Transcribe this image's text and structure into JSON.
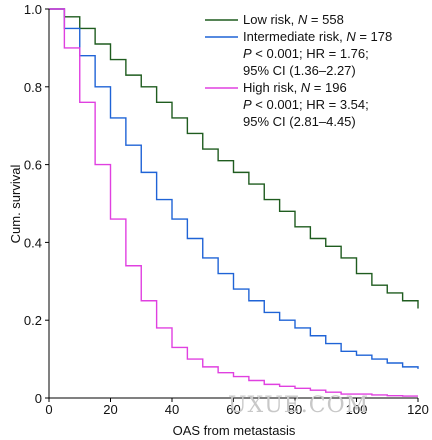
{
  "chart_data": {
    "type": "line",
    "xlabel": "OAS from metastasis",
    "ylabel": "Cum. survival",
    "xlim": [
      0,
      120
    ],
    "ylim": [
      0,
      1.0
    ],
    "x_ticks": [
      "0",
      "20",
      "40",
      "60",
      "80",
      "100",
      "120"
    ],
    "y_ticks": [
      "0",
      "0.2",
      "0.4",
      "0.6",
      "0.8",
      "1.0"
    ],
    "grid": false,
    "legend_position": "top-right",
    "series": [
      {
        "name_parts": [
          "Low risk, ",
          "N",
          " = 558"
        ],
        "stats": [],
        "color": "#1f5c1f",
        "x": [
          0,
          5,
          10,
          15,
          20,
          25,
          30,
          35,
          40,
          45,
          50,
          55,
          60,
          65,
          70,
          75,
          80,
          85,
          90,
          95,
          100,
          105,
          110,
          115,
          120
        ],
        "y": [
          1.0,
          0.98,
          0.95,
          0.91,
          0.87,
          0.83,
          0.8,
          0.76,
          0.72,
          0.68,
          0.64,
          0.61,
          0.58,
          0.55,
          0.51,
          0.48,
          0.44,
          0.41,
          0.39,
          0.36,
          0.32,
          0.29,
          0.27,
          0.25,
          0.23
        ]
      },
      {
        "name_parts": [
          "Intermediate risk, ",
          "N",
          " = 178"
        ],
        "stats": [
          [
            "P",
            " < 0.001; HR = 1.76;"
          ],
          [
            "",
            "95% CI (1.36–2.27)"
          ]
        ],
        "color": "#1f63d6",
        "x": [
          0,
          5,
          10,
          15,
          20,
          25,
          30,
          35,
          40,
          45,
          50,
          55,
          60,
          65,
          70,
          75,
          80,
          85,
          90,
          95,
          100,
          105,
          110,
          115,
          120
        ],
        "y": [
          1.0,
          0.95,
          0.88,
          0.8,
          0.72,
          0.65,
          0.58,
          0.51,
          0.46,
          0.41,
          0.36,
          0.32,
          0.28,
          0.25,
          0.22,
          0.2,
          0.18,
          0.16,
          0.14,
          0.12,
          0.11,
          0.1,
          0.09,
          0.08,
          0.075
        ]
      },
      {
        "name_parts": [
          "High risk, ",
          "N",
          " = 196"
        ],
        "stats": [
          [
            "P",
            " < 0.001; HR = 3.54;"
          ],
          [
            "",
            "95% CI (2.81–4.45)"
          ]
        ],
        "color": "#e040e0",
        "x": [
          0,
          5,
          10,
          15,
          20,
          25,
          30,
          35,
          40,
          45,
          50,
          55,
          60,
          65,
          70,
          75,
          80,
          85,
          90,
          95,
          100,
          105,
          110,
          115,
          120
        ],
        "y": [
          1.0,
          0.9,
          0.76,
          0.6,
          0.46,
          0.34,
          0.25,
          0.18,
          0.13,
          0.1,
          0.08,
          0.065,
          0.055,
          0.045,
          0.035,
          0.03,
          0.025,
          0.02,
          0.015,
          0.01,
          0.01,
          0.008,
          0.006,
          0.005,
          0.005
        ]
      }
    ]
  },
  "watermark": "UXUE.COM"
}
